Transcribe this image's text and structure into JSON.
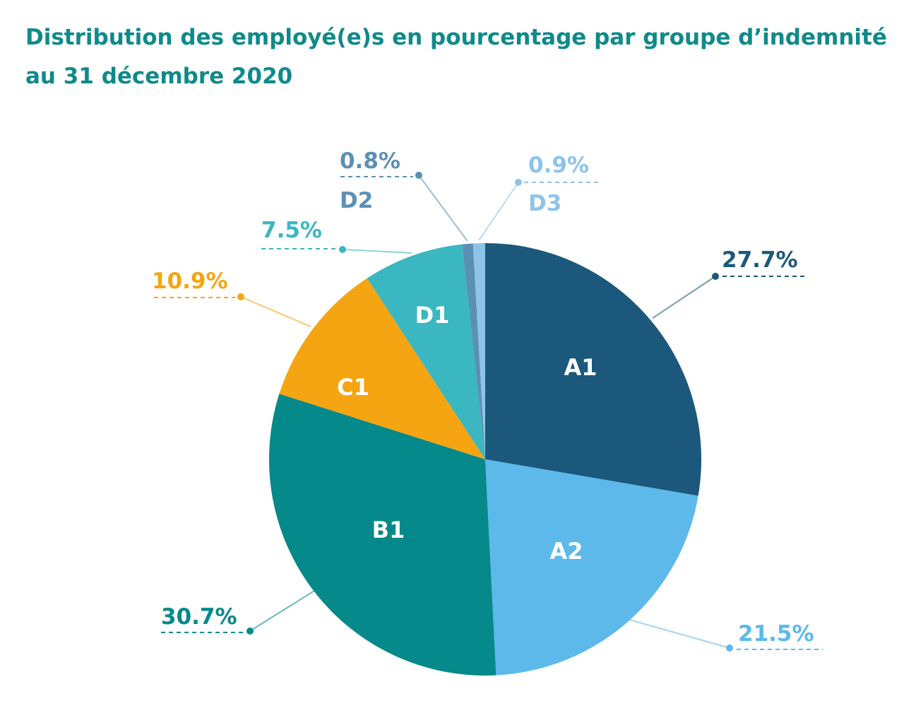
{
  "title": {
    "line1": "Distribution des employé(e)s en pourcentage par groupe d’indemnité",
    "line2": "au 31 décembre 2020"
  },
  "chart_data": {
    "type": "pie",
    "title": "Distribution des employé(e)s en pourcentage par groupe d’indemnité au 31 décembre 2020",
    "start": "12 o'clock, clockwise",
    "slices": [
      {
        "label": "A1",
        "value": 27.7,
        "value_label": "27.7%",
        "color": "#1b587c",
        "label_color": "#1b587c",
        "inner_label": true,
        "outer_category": false
      },
      {
        "label": "A2",
        "value": 21.5,
        "value_label": "21.5%",
        "color": "#5cb9ea",
        "label_color": "#5cb9ea",
        "inner_label": true,
        "outer_category": false
      },
      {
        "label": "B1",
        "value": 30.7,
        "value_label": "30.7%",
        "color": "#05898a",
        "label_color": "#05898a",
        "inner_label": true,
        "outer_category": false
      },
      {
        "label": "C1",
        "value": 10.9,
        "value_label": "10.9%",
        "color": "#f5a511",
        "label_color": "#f5a511",
        "inner_label": true,
        "outer_category": false
      },
      {
        "label": "D1",
        "value": 7.5,
        "value_label": "7.5%",
        "color": "#3ab7c0",
        "label_color": "#3ab7c0",
        "inner_label": true,
        "outer_category": false
      },
      {
        "label": "D2",
        "value": 0.8,
        "value_label": "0.8%",
        "color": "#5b90b5",
        "label_color": "#5b90b5",
        "inner_label": false,
        "outer_category": true
      },
      {
        "label": "D3",
        "value": 0.9,
        "value_label": "0.9%",
        "color": "#8ec3ea",
        "label_color": "#8ec3ea",
        "inner_label": false,
        "outer_category": true
      }
    ]
  }
}
